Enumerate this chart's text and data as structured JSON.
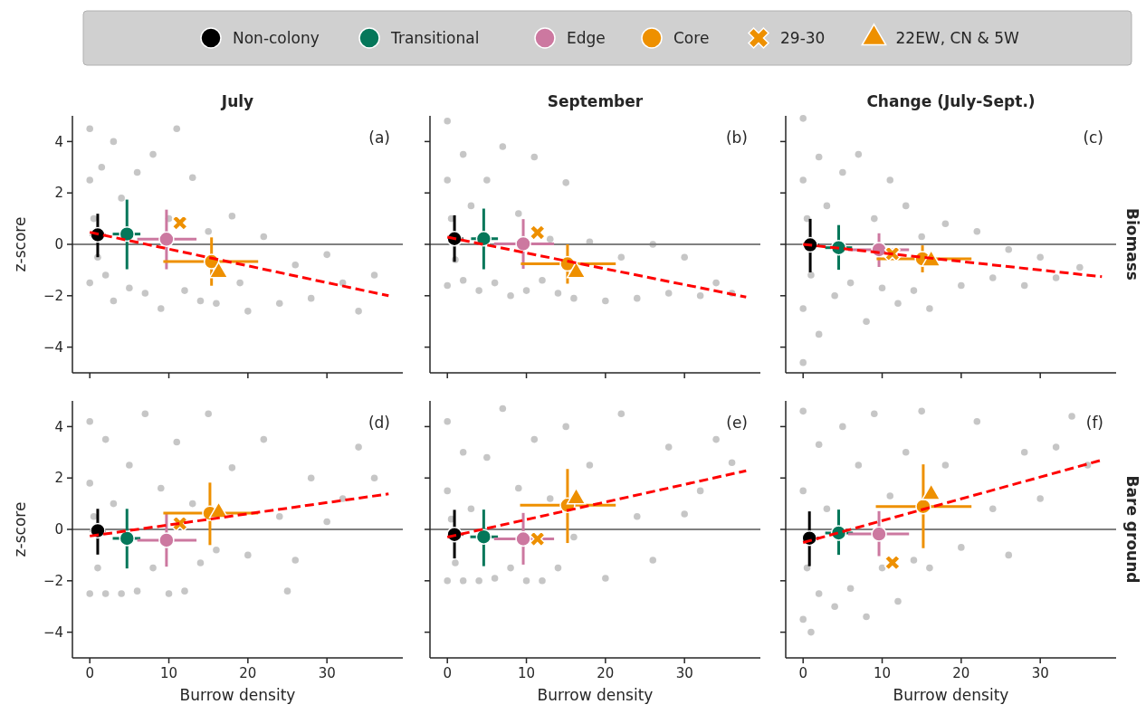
{
  "chart_data": [
    {
      "type": "scatter",
      "title": "July",
      "ylabel": "z-score",
      "xlim": [
        -2.2,
        39.6
      ],
      "ylim": [
        -5,
        5
      ],
      "xticks": [
        0,
        10,
        20,
        30
      ],
      "yticks": [
        -4,
        -2,
        0,
        2,
        4
      ],
      "tick_labels": "y",
      "legend": "top",
      "annotations": [
        "(a)"
      ],
      "ref_lines": [
        {
          "axis": "y",
          "value": 0,
          "color": "#808080"
        }
      ],
      "series": [
        {
          "type": "scatter",
          "color": "#808080",
          "marker": "circle",
          "x": [
            0,
            0,
            0,
            0.5,
            1,
            1.5,
            2,
            3,
            3,
            4,
            5,
            6,
            7,
            8,
            9,
            10,
            11,
            12,
            13,
            14,
            15,
            16,
            18,
            19,
            20,
            22,
            24,
            26,
            28,
            30,
            32,
            34,
            36
          ],
          "values": [
            4.5,
            2.5,
            -1.5,
            1,
            -0.5,
            3,
            -1.2,
            4,
            -2.2,
            1.8,
            -1.7,
            2.8,
            -1.9,
            3.5,
            -2.5,
            1,
            4.5,
            -1.8,
            2.6,
            -2.2,
            0.5,
            -2.3,
            1.1,
            -1.5,
            -2.6,
            0.3,
            -2.3,
            -0.8,
            -2.1,
            -0.4,
            -1.5,
            -2.6,
            -1.2
          ]
        },
        {
          "type": "line",
          "color": "#ff0000",
          "line_style": "dashed",
          "x": [
            0,
            37.8
          ],
          "values": [
            0.47,
            -2.0
          ]
        },
        {
          "name": "Non-colony",
          "type": "scatter",
          "marker": "circle",
          "color": "#000000",
          "x": [
            1.0
          ],
          "values": [
            0.37
          ],
          "errors": [
            [
              -0.5,
              1.19
            ]
          ],
          "xerrors": [
            [
              0,
              2
            ]
          ]
        },
        {
          "name": "Transitional",
          "type": "scatter",
          "marker": "circle",
          "color": "#05775a",
          "x": [
            4.7
          ],
          "values": [
            0.4
          ],
          "errors": [
            [
              -0.97,
              1.74
            ]
          ],
          "xerrors": [
            [
              2.9,
              6.4
            ]
          ]
        },
        {
          "name": "Edge",
          "type": "scatter",
          "marker": "circle",
          "color": "#cc78a0",
          "x": [
            9.7
          ],
          "values": [
            0.2
          ],
          "errors": [
            [
              -0.97,
              1.35
            ]
          ],
          "xerrors": [
            [
              6.0,
              13.5
            ]
          ]
        },
        {
          "name": "Core",
          "type": "scatter",
          "marker": "circle",
          "color": "#ee9000",
          "x": [
            15.4
          ],
          "values": [
            -0.67
          ],
          "errors": [
            [
              -1.61,
              0.27
            ]
          ],
          "xerrors": [
            [
              9.3,
              21.3
            ]
          ]
        },
        {
          "name": "29-30",
          "type": "scatter",
          "marker": "cross",
          "color": "#ee9000",
          "x": [
            11.4
          ],
          "values": [
            0.84
          ]
        },
        {
          "name": "22EW, CN & 5W",
          "type": "scatter",
          "marker": "triangle",
          "color": "#ee9000",
          "x": [
            16.3
          ],
          "values": [
            -1.09
          ]
        }
      ]
    },
    {
      "type": "scatter",
      "title": "September",
      "xlim": [
        -2.2,
        39.6
      ],
      "ylim": [
        -5,
        5
      ],
      "xticks": [
        0,
        10,
        20,
        30
      ],
      "yticks": [
        -4,
        -2,
        0,
        2,
        4
      ],
      "tick_labels": false,
      "annotations": [
        "(b)"
      ],
      "ref_lines": [
        {
          "axis": "y",
          "value": 0,
          "color": "#808080"
        }
      ],
      "series": [
        {
          "type": "scatter",
          "color": "#808080",
          "marker": "circle",
          "x": [
            0,
            0,
            0,
            0.5,
            1,
            2,
            2,
            3,
            4,
            5,
            6,
            7,
            8,
            9,
            10,
            11,
            12,
            13,
            14,
            15,
            16,
            18,
            20,
            22,
            24,
            26,
            28,
            30,
            32,
            34,
            36
          ],
          "values": [
            4.8,
            2.5,
            -1.6,
            1,
            -0.6,
            3.5,
            -1.4,
            1.5,
            -1.8,
            2.5,
            -1.5,
            3.8,
            -2,
            1.2,
            -1.8,
            3.4,
            -1.4,
            0.2,
            -1.9,
            2.4,
            -2.1,
            0.1,
            -2.2,
            -0.5,
            -2.1,
            0,
            -1.9,
            -0.5,
            -2,
            -1.5,
            -1.9
          ]
        },
        {
          "type": "line",
          "color": "#ff0000",
          "line_style": "dashed",
          "x": [
            0,
            37.8
          ],
          "values": [
            0.28,
            -2.05
          ]
        },
        {
          "type": "scatter",
          "marker": "circle",
          "color": "#000000",
          "x": [
            0.9
          ],
          "values": [
            0.22
          ],
          "errors": [
            [
              -0.68,
              1.13
            ]
          ],
          "xerrors": [
            [
              0,
              2
            ]
          ]
        },
        {
          "type": "scatter",
          "marker": "circle",
          "color": "#05775a",
          "x": [
            4.6
          ],
          "values": [
            0.22
          ],
          "errors": [
            [
              -0.97,
              1.39
            ]
          ],
          "xerrors": [
            [
              3.0,
              6.4
            ]
          ]
        },
        {
          "type": "scatter",
          "marker": "circle",
          "color": "#cc78a0",
          "x": [
            9.6
          ],
          "values": [
            0.02
          ],
          "errors": [
            [
              -0.95,
              0.98
            ]
          ],
          "xerrors": [
            [
              5.9,
              13.5
            ]
          ]
        },
        {
          "type": "scatter",
          "marker": "circle",
          "color": "#ee9000",
          "x": [
            15.2
          ],
          "values": [
            -0.76
          ],
          "errors": [
            [
              -1.53,
              0
            ]
          ],
          "xerrors": [
            [
              9.3,
              21.3
            ]
          ]
        },
        {
          "type": "scatter",
          "marker": "cross",
          "color": "#ee9000",
          "x": [
            11.4
          ],
          "values": [
            0.46
          ]
        },
        {
          "type": "scatter",
          "marker": "triangle",
          "color": "#ee9000",
          "x": [
            16.3
          ],
          "values": [
            -1.09
          ]
        }
      ]
    },
    {
      "type": "scatter",
      "title": "Change (July-Sept.)",
      "y2label": "Biomass",
      "xlim": [
        -2.2,
        39.6
      ],
      "ylim": [
        -5,
        5
      ],
      "xticks": [
        0,
        10,
        20,
        30
      ],
      "yticks": [
        -4,
        -2,
        0,
        2,
        4
      ],
      "tick_labels": false,
      "annotations": [
        "(c)"
      ],
      "ref_lines": [
        {
          "axis": "y",
          "value": 0,
          "color": "#808080"
        }
      ],
      "series": [
        {
          "type": "scatter",
          "color": "#808080",
          "marker": "circle",
          "x": [
            0,
            0,
            0,
            0,
            0.5,
            1,
            2,
            2,
            3,
            4,
            5,
            6,
            7,
            8,
            9,
            10,
            11,
            12,
            13,
            14,
            15,
            16,
            18,
            20,
            22,
            24,
            26,
            28,
            30,
            32,
            35
          ],
          "values": [
            4.9,
            -4.6,
            2.5,
            -2.5,
            1,
            -1.2,
            3.4,
            -3.5,
            1.5,
            -2,
            2.8,
            -1.5,
            3.5,
            -3,
            1,
            -1.7,
            2.5,
            -2.3,
            1.5,
            -1.8,
            0.3,
            -2.5,
            0.8,
            -1.6,
            0.5,
            -1.3,
            -0.2,
            -1.6,
            -0.5,
            -1.3,
            -0.9
          ]
        },
        {
          "type": "line",
          "color": "#ff0000",
          "line_style": "dashed",
          "x": [
            0,
            37.8
          ],
          "values": [
            0.0,
            -1.26
          ]
        },
        {
          "type": "scatter",
          "marker": "circle",
          "color": "#000000",
          "x": [
            0.9
          ],
          "values": [
            -0.02
          ],
          "errors": [
            [
              -1.09,
              0.99
            ]
          ],
          "xerrors": [
            [
              0,
              2
            ]
          ]
        },
        {
          "type": "scatter",
          "marker": "circle",
          "color": "#05775a",
          "x": [
            4.5
          ],
          "values": [
            -0.13
          ],
          "errors": [
            [
              -0.99,
              0.75
            ]
          ],
          "xerrors": [
            [
              2.8,
              6.2
            ]
          ]
        },
        {
          "type": "scatter",
          "marker": "circle",
          "color": "#cc78a0",
          "x": [
            9.6
          ],
          "values": [
            -0.21
          ],
          "errors": [
            [
              -0.88,
              0.43
            ]
          ],
          "xerrors": [
            [
              5.7,
              13.4
            ]
          ]
        },
        {
          "type": "scatter",
          "marker": "circle",
          "color": "#ee9000",
          "x": [
            15.1
          ],
          "values": [
            -0.56
          ],
          "errors": [
            [
              -1.09,
              -0.04
            ]
          ],
          "xerrors": [
            [
              9.3,
              21.3
            ]
          ]
        },
        {
          "type": "scatter",
          "marker": "cross",
          "color": "#ee9000",
          "x": [
            11.3
          ],
          "values": [
            -0.36
          ]
        },
        {
          "type": "scatter",
          "marker": "triangle",
          "color": "#ee9000",
          "x": [
            16.2
          ],
          "values": [
            -0.64
          ]
        }
      ]
    },
    {
      "type": "scatter",
      "xlabel": "Burrow density",
      "ylabel": "z-score",
      "xlim": [
        -2.2,
        39.6
      ],
      "ylim": [
        -5,
        5
      ],
      "xticks": [
        0,
        10,
        20,
        30
      ],
      "yticks": [
        -4,
        -2,
        0,
        2,
        4
      ],
      "annotations": [
        "(d)"
      ],
      "ref_lines": [
        {
          "axis": "y",
          "value": 0,
          "color": "#808080"
        }
      ],
      "series": [
        {
          "type": "scatter",
          "color": "#808080",
          "marker": "circle",
          "x": [
            0,
            0,
            0,
            0.5,
            1,
            2,
            2,
            3,
            4,
            5,
            6,
            7,
            8,
            9,
            10,
            11,
            12,
            13,
            14,
            15,
            16,
            18,
            20,
            22,
            24,
            25,
            26,
            28,
            30,
            32,
            34,
            36
          ],
          "values": [
            4.2,
            1.8,
            -2.5,
            0.5,
            -1.5,
            3.5,
            -2.5,
            1,
            -2.5,
            2.5,
            -2.4,
            4.5,
            -1.5,
            1.6,
            -2.5,
            3.4,
            -2.4,
            1,
            -1.3,
            4.5,
            -0.8,
            2.4,
            -1,
            3.5,
            0.5,
            -2.4,
            -1.2,
            2,
            0.3,
            1.2,
            3.2,
            2
          ]
        },
        {
          "type": "line",
          "color": "#ff0000",
          "line_style": "dashed",
          "x": [
            0,
            37.8
          ],
          "values": [
            -0.26,
            1.38
          ]
        },
        {
          "type": "scatter",
          "marker": "circle",
          "color": "#000000",
          "x": [
            1.0
          ],
          "values": [
            -0.05
          ],
          "errors": [
            [
              -0.98,
              0.8
            ]
          ],
          "xerrors": [
            [
              0,
              2
            ]
          ]
        },
        {
          "type": "scatter",
          "marker": "circle",
          "color": "#05775a",
          "x": [
            4.7
          ],
          "values": [
            -0.35
          ],
          "errors": [
            [
              -1.52,
              0.8
            ]
          ],
          "xerrors": [
            [
              2.9,
              6.4
            ]
          ]
        },
        {
          "type": "scatter",
          "marker": "circle",
          "color": "#cc78a0",
          "x": [
            9.7
          ],
          "values": [
            -0.42
          ],
          "errors": [
            [
              -1.45,
              0.62
            ]
          ],
          "xerrors": [
            [
              6.0,
              13.5
            ]
          ]
        },
        {
          "type": "scatter",
          "marker": "circle",
          "color": "#ee9000",
          "x": [
            15.2
          ],
          "values": [
            0.63
          ],
          "errors": [
            [
              -0.61,
              1.82
            ]
          ],
          "xerrors": [
            [
              9.3,
              21.3
            ]
          ]
        },
        {
          "type": "scatter",
          "marker": "cross",
          "color": "#ee9000",
          "x": [
            11.4
          ],
          "values": [
            0.23
          ]
        },
        {
          "type": "scatter",
          "marker": "triangle",
          "color": "#ee9000",
          "x": [
            16.3
          ],
          "values": [
            0.66
          ]
        }
      ]
    },
    {
      "type": "scatter",
      "xlabel": "Burrow density",
      "xlim": [
        -2.2,
        39.6
      ],
      "ylim": [
        -5,
        5
      ],
      "xticks": [
        0,
        10,
        20,
        30
      ],
      "yticks": [
        -4,
        -2,
        0,
        2,
        4
      ],
      "tick_labels": "x",
      "annotations": [
        "(e)"
      ],
      "ref_lines": [
        {
          "axis": "y",
          "value": 0,
          "color": "#808080"
        }
      ],
      "series": [
        {
          "type": "scatter",
          "color": "#808080",
          "marker": "circle",
          "x": [
            0,
            0,
            0,
            0.5,
            1,
            2,
            2,
            3,
            4,
            5,
            6,
            7,
            8,
            9,
            10,
            11,
            12,
            13,
            14,
            15,
            16,
            18,
            20,
            22,
            24,
            26,
            28,
            30,
            32,
            34,
            36
          ],
          "values": [
            4.2,
            1.5,
            -2,
            0.4,
            -1.3,
            3,
            -2,
            0.8,
            -2,
            2.8,
            -1.9,
            4.7,
            -1.5,
            1.6,
            -2,
            3.5,
            -2,
            1.2,
            -1.5,
            4,
            -0.3,
            2.5,
            -1.9,
            4.5,
            0.5,
            -1.2,
            3.2,
            0.6,
            1.5,
            3.5,
            2.6
          ]
        },
        {
          "type": "line",
          "color": "#ff0000",
          "line_style": "dashed",
          "x": [
            0,
            37.8
          ],
          "values": [
            -0.3,
            2.28
          ]
        },
        {
          "type": "scatter",
          "marker": "circle",
          "color": "#000000",
          "x": [
            0.9
          ],
          "values": [
            -0.2
          ],
          "errors": [
            [
              -1.13,
              0.76
            ]
          ],
          "xerrors": [
            [
              0,
              2
            ]
          ]
        },
        {
          "type": "scatter",
          "marker": "circle",
          "color": "#05775a",
          "x": [
            4.6
          ],
          "values": [
            -0.29
          ],
          "errors": [
            [
              -1.43,
              0.77
            ]
          ],
          "xerrors": [
            [
              2.9,
              6.4
            ]
          ]
        },
        {
          "type": "scatter",
          "marker": "circle",
          "color": "#cc78a0",
          "x": [
            9.6
          ],
          "values": [
            -0.37
          ],
          "errors": [
            [
              -1.37,
              0.64
            ]
          ],
          "xerrors": [
            [
              5.9,
              13.5
            ]
          ]
        },
        {
          "type": "scatter",
          "marker": "circle",
          "color": "#ee9000",
          "x": [
            15.2
          ],
          "values": [
            0.94
          ],
          "errors": [
            [
              -0.53,
              2.35
            ]
          ],
          "xerrors": [
            [
              9.2,
              21.3
            ]
          ]
        },
        {
          "type": "scatter",
          "marker": "cross",
          "color": "#ee9000",
          "x": [
            11.4
          ],
          "values": [
            -0.37
          ]
        },
        {
          "type": "scatter",
          "marker": "triangle",
          "color": "#ee9000",
          "x": [
            16.3
          ],
          "values": [
            1.2
          ]
        }
      ]
    },
    {
      "type": "scatter",
      "xlabel": "Burrow density",
      "y2label": "Bare ground",
      "xlim": [
        -2.2,
        39.6
      ],
      "ylim": [
        -5,
        5
      ],
      "xticks": [
        0,
        10,
        20,
        30
      ],
      "yticks": [
        -4,
        -2,
        0,
        2,
        4
      ],
      "tick_labels": "x",
      "annotations": [
        "(f)"
      ],
      "ref_lines": [
        {
          "axis": "y",
          "value": 0,
          "color": "#808080"
        }
      ],
      "series": [
        {
          "type": "scatter",
          "color": "#808080",
          "marker": "circle",
          "x": [
            0,
            0,
            0,
            0.5,
            1,
            2,
            2,
            3,
            4,
            5,
            6,
            7,
            8,
            9,
            10,
            11,
            12,
            13,
            14,
            15,
            16,
            18,
            20,
            22,
            24,
            26,
            28,
            30,
            32,
            34,
            36
          ],
          "values": [
            4.6,
            -3.5,
            1.5,
            -1.5,
            -4,
            3.3,
            -2.5,
            0.8,
            -3,
            4,
            -2.3,
            2.5,
            -3.4,
            4.5,
            -1.5,
            1.3,
            -2.8,
            3,
            -1.2,
            4.6,
            -1.5,
            2.5,
            -0.7,
            4.2,
            0.8,
            -1,
            3,
            1.2,
            3.2,
            4.4,
            2.5
          ]
        },
        {
          "type": "line",
          "color": "#ff0000",
          "line_style": "dashed",
          "x": [
            0,
            37.8
          ],
          "values": [
            -0.51,
            2.7
          ]
        },
        {
          "type": "scatter",
          "marker": "circle",
          "color": "#000000",
          "x": [
            0.8
          ],
          "values": [
            -0.34
          ],
          "errors": [
            [
              -1.43,
              0.7
            ]
          ],
          "xerrors": [
            [
              0,
              2
            ]
          ]
        },
        {
          "type": "scatter",
          "marker": "circle",
          "color": "#05775a",
          "x": [
            4.5
          ],
          "values": [
            -0.14
          ],
          "errors": [
            [
              -0.99,
              0.77
            ]
          ],
          "xerrors": [
            [
              2.8,
              6.3
            ]
          ]
        },
        {
          "type": "scatter",
          "marker": "circle",
          "color": "#cc78a0",
          "x": [
            9.6
          ],
          "values": [
            -0.18
          ],
          "errors": [
            [
              -1.04,
              0.71
            ]
          ],
          "xerrors": [
            [
              5.7,
              13.4
            ]
          ]
        },
        {
          "type": "scatter",
          "marker": "circle",
          "color": "#ee9000",
          "x": [
            15.2
          ],
          "values": [
            0.89
          ],
          "errors": [
            [
              -0.73,
              2.53
            ]
          ],
          "xerrors": [
            [
              9.2,
              21.3
            ]
          ]
        },
        {
          "type": "scatter",
          "marker": "cross",
          "color": "#ee9000",
          "x": [
            11.3
          ],
          "values": [
            -1.29
          ]
        },
        {
          "type": "scatter",
          "marker": "triangle",
          "color": "#ee9000",
          "x": [
            16.2
          ],
          "values": [
            1.36
          ]
        }
      ]
    }
  ]
}
